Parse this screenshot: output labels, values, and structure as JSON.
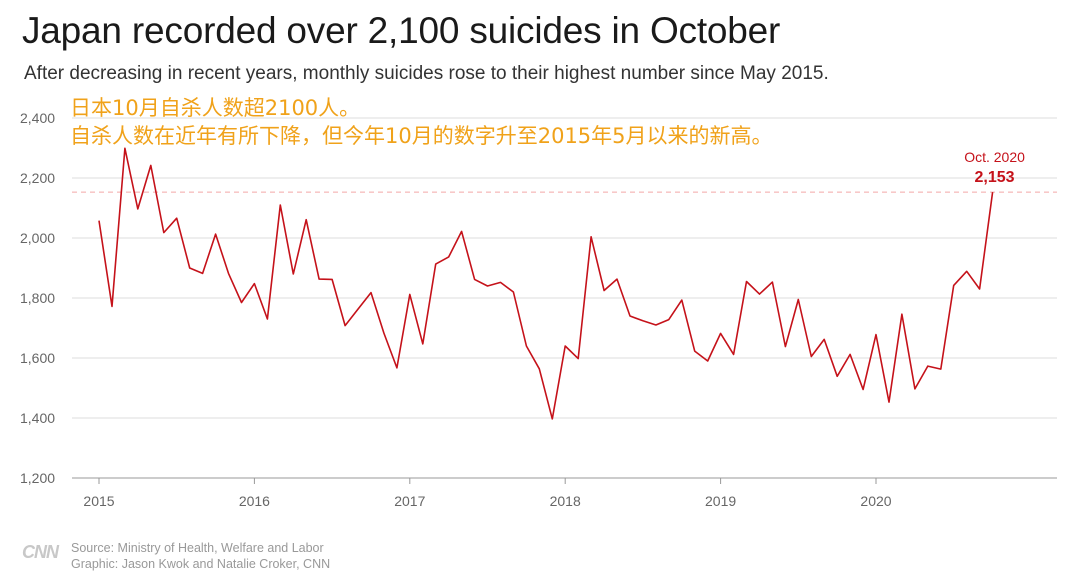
{
  "title": "Japan recorded over 2,100 suicides in October",
  "subtitle": "After decreasing in recent years, monthly suicides rose to their highest number since May 2015.",
  "overlay_text": {
    "line1": "日本10月自杀人数超2100人。",
    "line2": "自杀人数在近年有所下降，但今年10月的数字升至2015年5月以来的新高。"
  },
  "footer": {
    "logo": "CNN",
    "source": "Source: Ministry of Health, Welfare and Labor",
    "credit": "Graphic: Jason Kwok and Natalie Croker, CNN"
  },
  "colors": {
    "line": "#c5121a",
    "grid": "#dddddd",
    "reference": "#f3a6a6",
    "overlay": "#f0a21a"
  },
  "chart_data": {
    "type": "line",
    "title": "Japan recorded over 2,100 suicides in October",
    "xlabel": "",
    "ylabel": "",
    "ylim": [
      1200,
      2400
    ],
    "yticks": [
      1200,
      1400,
      1600,
      1800,
      2000,
      2200,
      2400
    ],
    "ytick_labels": [
      "1,200",
      "1,400",
      "1,600",
      "1,800",
      "2,000",
      "2,200",
      "2,400"
    ],
    "xticks": [
      "2015",
      "2016",
      "2017",
      "2018",
      "2019",
      "2020"
    ],
    "grid": true,
    "legend": "none",
    "x_start": "2015-01",
    "x_end": "2020-10",
    "annotation": {
      "x": "2020-10",
      "label": "Oct. 2020",
      "value_label": "2,153",
      "value": 2153
    },
    "reference_line": 2153,
    "series": [
      {
        "values": [
          2058,
          1772,
          2299,
          2097,
          2242,
          2018,
          2066,
          1900,
          1882,
          2013,
          1882,
          1785,
          1848,
          1730,
          2110,
          1880,
          2061,
          1863,
          1862,
          1708,
          1763,
          1818,
          1683,
          1567,
          1812,
          1647,
          1913,
          1937,
          2022,
          1862,
          1840,
          1852,
          1820,
          1640,
          1564,
          1397,
          1640,
          1598,
          2004,
          1825,
          1863,
          1740,
          1724,
          1710,
          1728,
          1793,
          1623,
          1590,
          1682,
          1612,
          1855,
          1813,
          1853,
          1638,
          1795,
          1605,
          1662,
          1539,
          1612,
          1495,
          1678,
          1453,
          1746,
          1497,
          1573,
          1563,
          1842,
          1889,
          1830,
          2153
        ]
      }
    ]
  }
}
